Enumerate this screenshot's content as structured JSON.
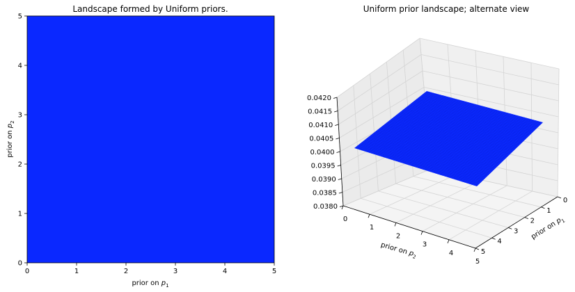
{
  "chart_data": [
    {
      "type": "heatmap",
      "title": "Landscape formed by Uniform priors.",
      "xlabel": "prior on",
      "xlabel_var": "p",
      "xlabel_sub": "1",
      "ylabel": "prior on",
      "ylabel_var": "p",
      "ylabel_sub": "2",
      "xlim": [
        0,
        5
      ],
      "ylim": [
        0,
        5
      ],
      "xticks": [
        "0",
        "1",
        "2",
        "3",
        "4",
        "5"
      ],
      "yticks": [
        "0",
        "1",
        "2",
        "3",
        "4",
        "5"
      ],
      "value": 0.04,
      "color": "#0a28ff",
      "grid": false
    },
    {
      "type": "surface3d",
      "title": "Uniform prior landscape; alternate view",
      "xlabel": "prior on",
      "xlabel_var": "p",
      "xlabel_sub": "2",
      "ylabel": "prior on",
      "ylabel_var": "p",
      "ylabel_sub": "1",
      "xlim": [
        0,
        5
      ],
      "ylim": [
        0,
        5
      ],
      "zlim": [
        0.038,
        0.042
      ],
      "xticks": [
        "0",
        "1",
        "2",
        "3",
        "4",
        "5"
      ],
      "yticks": [
        "0",
        "1",
        "2",
        "3",
        "4",
        "5"
      ],
      "zticks": [
        "0.0380",
        "0.0385",
        "0.0390",
        "0.0395",
        "0.0400",
        "0.0405",
        "0.0410",
        "0.0415",
        "0.0420"
      ],
      "z_value": 0.04,
      "color": "#0a28ff",
      "grid": true
    }
  ]
}
